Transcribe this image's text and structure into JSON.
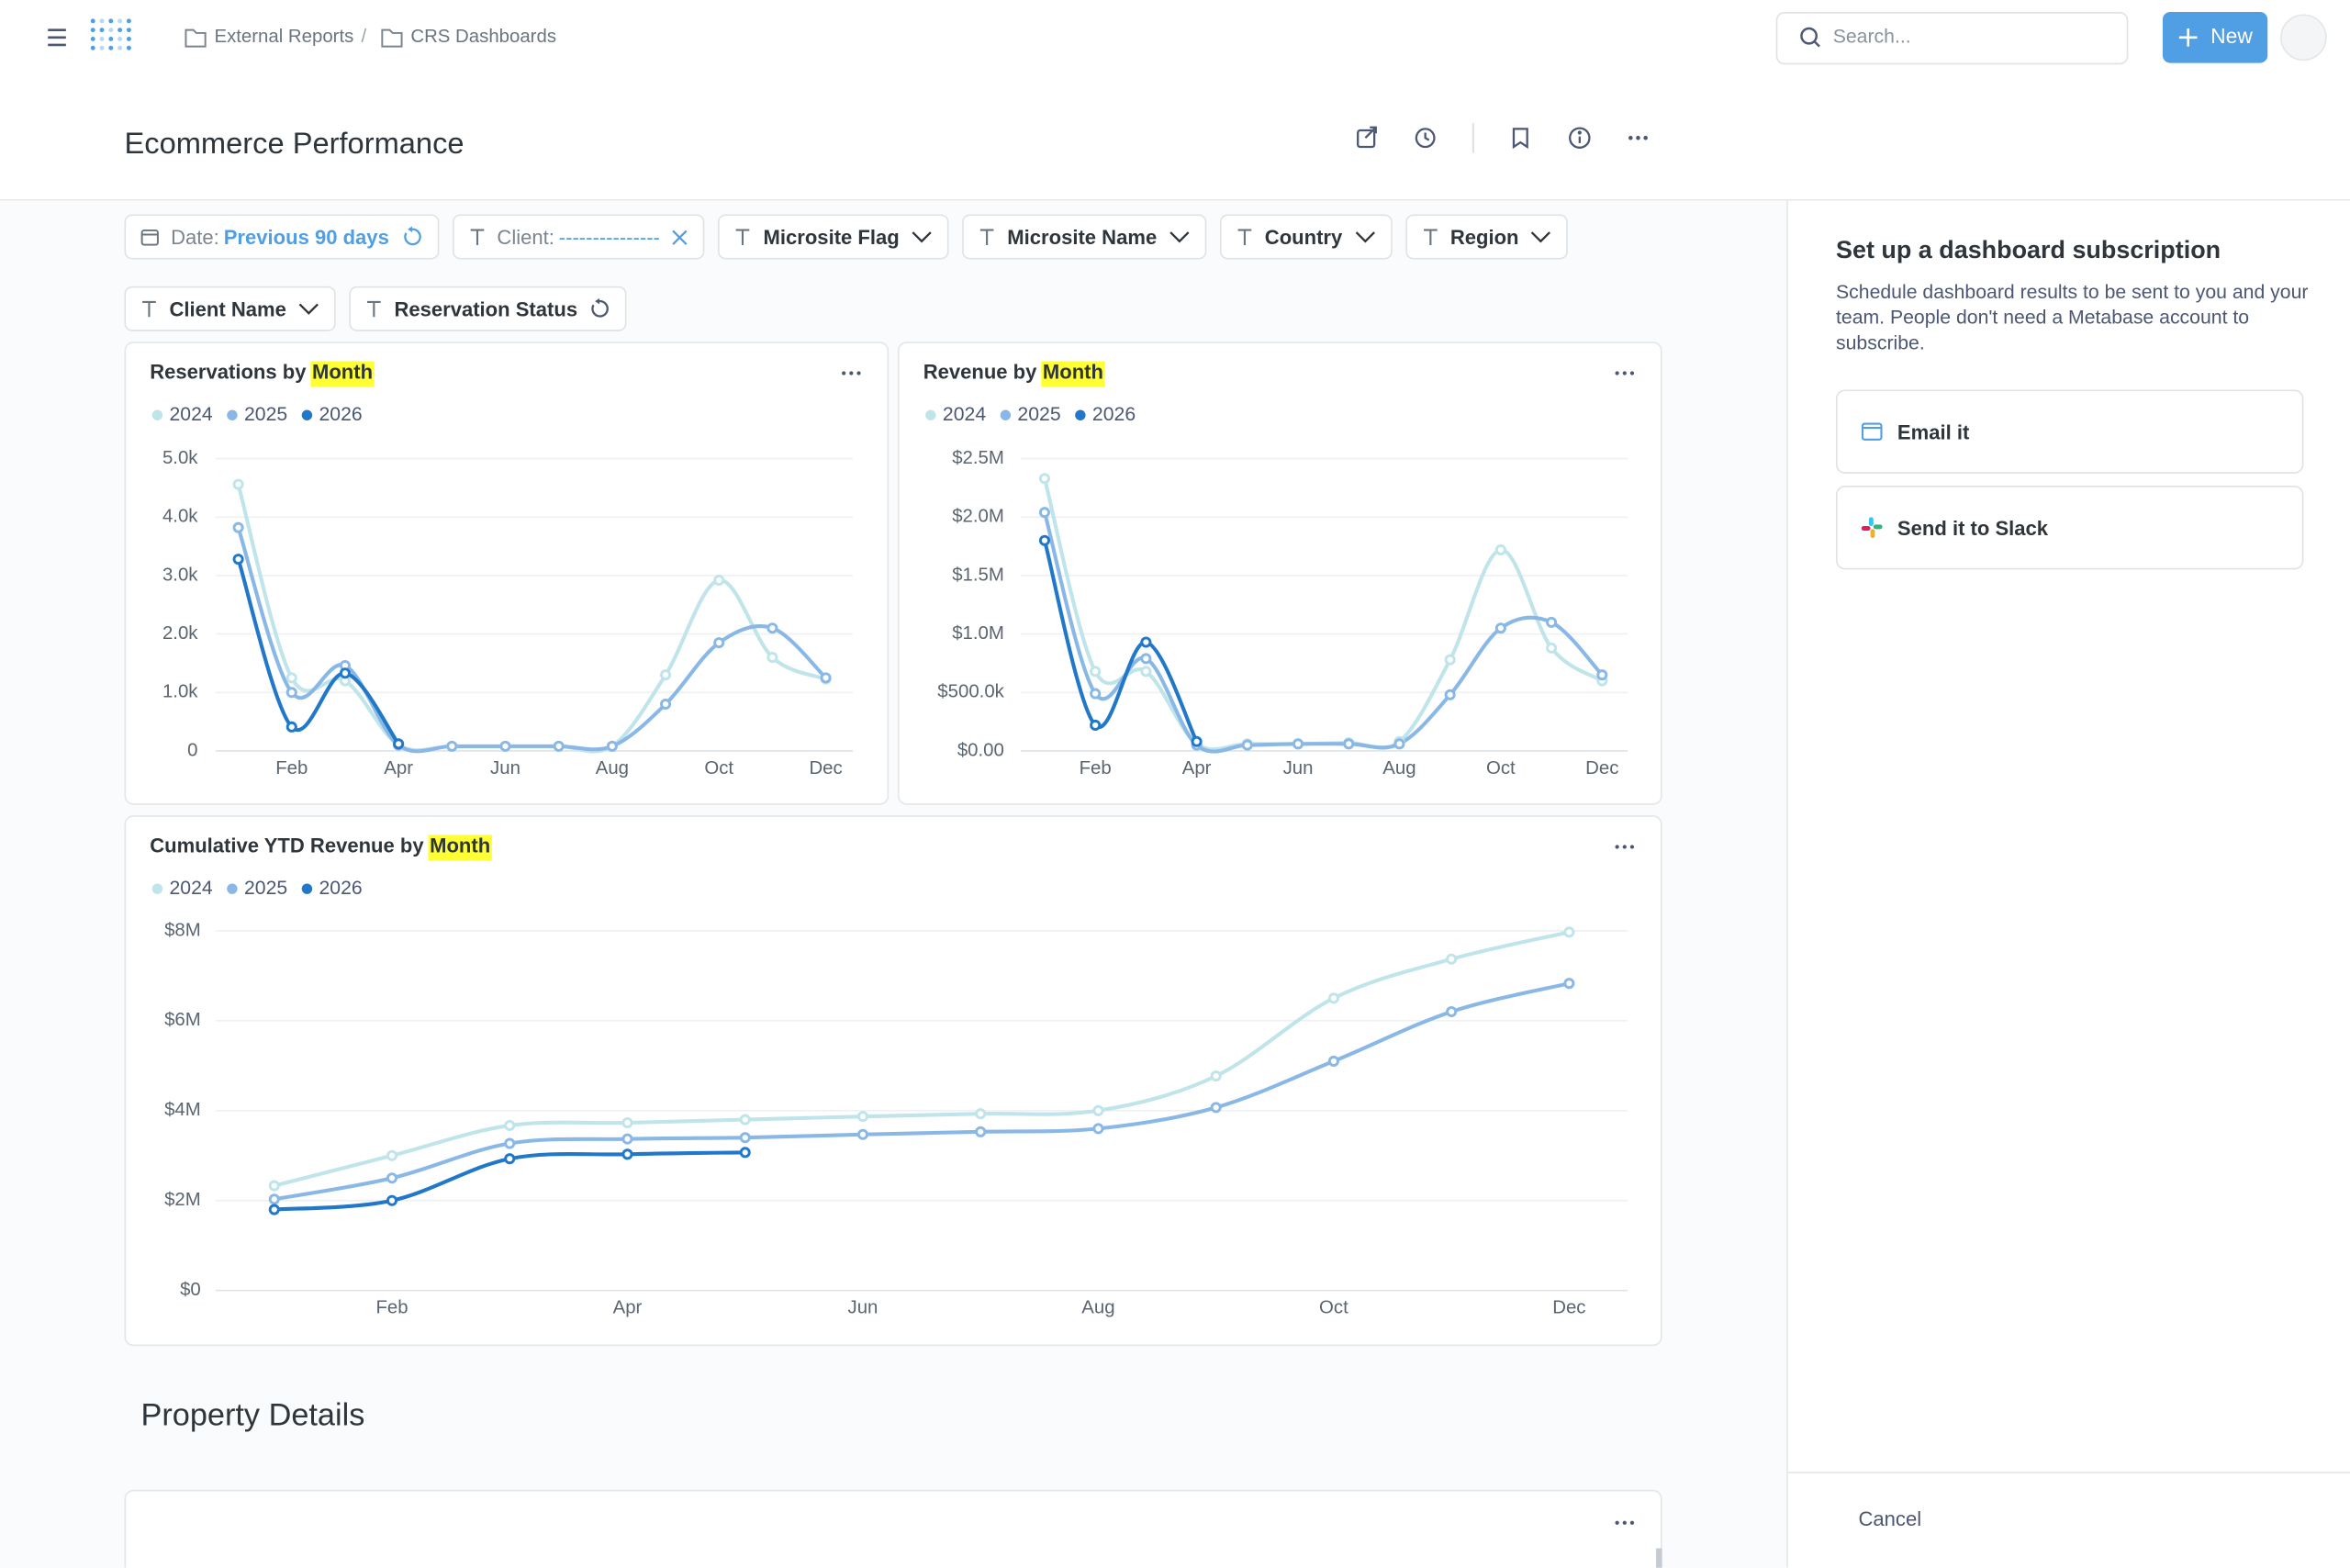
{
  "header": {
    "breadcrumb": [
      "External Reports",
      "CRS Dashboards"
    ],
    "search_placeholder": "Search...",
    "new_button": "New"
  },
  "dashboard": {
    "title": "Ecommerce Performance",
    "filters": [
      {
        "label": "Date:",
        "value": "Previous 90 days"
      },
      {
        "label": "Client:",
        "value": "---------------"
      },
      {
        "label": "Microsite Flag"
      },
      {
        "label": "Microsite Name"
      },
      {
        "label": "Country"
      },
      {
        "label": "Region"
      },
      {
        "label": "Client Name"
      },
      {
        "label": "Reservation Status"
      }
    ],
    "section_heading": "Property Details"
  },
  "charts": [
    {
      "type": "line",
      "title": "Reservations by",
      "title_highlight": "Month",
      "categories": [
        null,
        "Feb",
        null,
        "Apr",
        null,
        "Jun",
        null,
        "Aug",
        null,
        "Oct",
        null,
        "Dec"
      ],
      "ylim": [
        0,
        5000
      ],
      "yticks": [
        0,
        {
          "value": 1000,
          "label": "1.0k"
        },
        {
          "value": 2000,
          "label": "2.0k"
        },
        {
          "value": 3000,
          "label": "3.0k"
        },
        {
          "value": 4000,
          "label": "4.0k"
        },
        {
          "value": 5000,
          "label": "5.0k"
        }
      ],
      "grid": true,
      "series": [
        {
          "name": "2024",
          "color": "#bfe4ea",
          "values": [
            4560,
            1250,
            1200,
            100,
            80,
            80,
            80,
            80,
            1300,
            2920,
            1600,
            1230
          ]
        },
        {
          "name": "2025",
          "color": "#8ab8e6",
          "values": [
            3820,
            1000,
            1460,
            100,
            80,
            80,
            80,
            80,
            800,
            1850,
            2100,
            1250
          ]
        },
        {
          "name": "2026",
          "color": "#2178c9",
          "values": [
            3280,
            410,
            1330,
            120,
            null,
            null,
            null,
            null,
            null,
            null,
            null,
            null
          ]
        }
      ]
    },
    {
      "type": "line",
      "title": "Revenue by",
      "title_highlight": "Month",
      "categories": [
        null,
        "Feb",
        null,
        "Apr",
        null,
        "Jun",
        null,
        "Aug",
        null,
        "Oct",
        null,
        "Dec"
      ],
      "ylim": [
        0,
        2500000
      ],
      "yticks": [
        {
          "value": 0,
          "label": "$0.00"
        },
        {
          "value": 500000,
          "label": "$500.0k"
        },
        {
          "value": 1000000,
          "label": "$1.0M"
        },
        {
          "value": 1500000,
          "label": "$1.5M"
        },
        {
          "value": 2000000,
          "label": "$2.0M"
        },
        {
          "value": 2500000,
          "label": "$2.5M"
        }
      ],
      "grid": true,
      "series": [
        {
          "name": "2024",
          "color": "#bfe4ea",
          "values": [
            2330000,
            680000,
            680000,
            60000,
            60000,
            60000,
            70000,
            80000,
            780000,
            1720000,
            880000,
            600000
          ]
        },
        {
          "name": "2025",
          "color": "#8ab8e6",
          "values": [
            2040000,
            490000,
            790000,
            50000,
            50000,
            60000,
            60000,
            60000,
            480000,
            1050000,
            1100000,
            650000
          ]
        },
        {
          "name": "2026",
          "color": "#2178c9",
          "values": [
            1800000,
            220000,
            930000,
            80000,
            null,
            null,
            null,
            null,
            null,
            null,
            null,
            null
          ]
        }
      ]
    },
    {
      "type": "line",
      "title": "Cumulative YTD Revenue by",
      "title_highlight": "Month",
      "categories": [
        null,
        "Feb",
        null,
        "Apr",
        null,
        "Jun",
        null,
        "Aug",
        null,
        "Oct",
        null,
        "Dec"
      ],
      "ylim": [
        0,
        8000000
      ],
      "yticks": [
        {
          "value": 0,
          "label": "$0"
        },
        {
          "value": 2000000,
          "label": "$2M"
        },
        {
          "value": 4000000,
          "label": "$4M"
        },
        {
          "value": 6000000,
          "label": "$6M"
        },
        {
          "value": 8000000,
          "label": "$8M"
        }
      ],
      "grid": true,
      "series": [
        {
          "name": "2024",
          "color": "#bfe4ea",
          "values": [
            2330000,
            3000000,
            3670000,
            3730000,
            3800000,
            3870000,
            3930000,
            4000000,
            4770000,
            6500000,
            7370000,
            7970000
          ]
        },
        {
          "name": "2025",
          "color": "#8ab8e6",
          "values": [
            2030000,
            2500000,
            3270000,
            3370000,
            3400000,
            3470000,
            3530000,
            3600000,
            4070000,
            5100000,
            6200000,
            6830000
          ]
        },
        {
          "name": "2026",
          "color": "#2178c9",
          "values": [
            1800000,
            2000000,
            2930000,
            3030000,
            3070000,
            null,
            null,
            null,
            null,
            null,
            null,
            null
          ]
        }
      ]
    }
  ],
  "sidebar": {
    "title": "Set up a dashboard subscription",
    "description": "Schedule dashboard results to be sent to you and your team. People don't need a Metabase account to subscribe.",
    "options": [
      "Email it",
      "Send it to Slack"
    ],
    "cancel": "Cancel"
  }
}
